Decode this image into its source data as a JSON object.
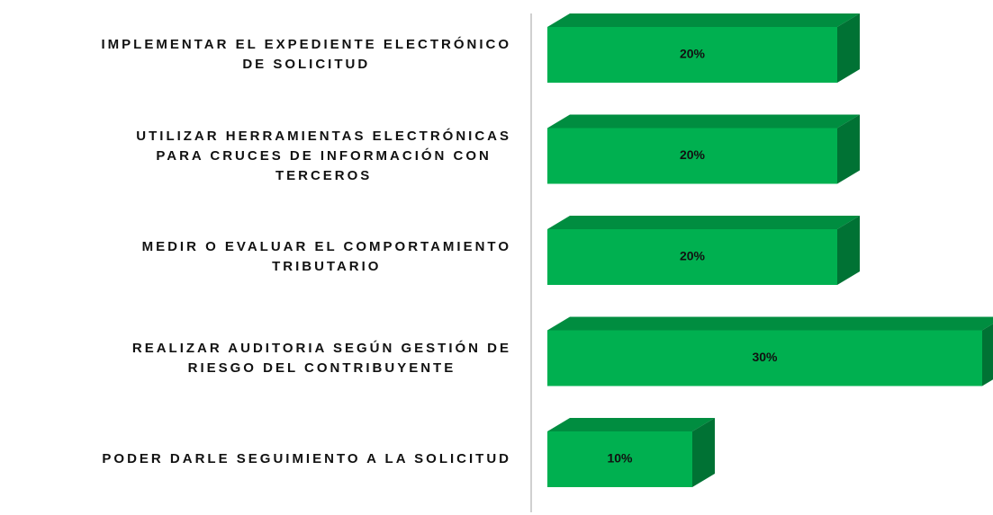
{
  "chart_data": {
    "type": "bar3d",
    "categories": [
      "IMPLEMENTAR EL EXPEDIENTE ELECTRÓNICO\nDE SOLICITUD",
      "UTILIZAR HERRAMIENTAS ELECTRÓNICAS\nPARA CRUCES DE INFORMACIÓN CON\nTERCEROS",
      "MEDIR O EVALUAR EL COMPORTAMIENTO\nTRIBUTARIO",
      "REALIZAR AUDITORIA SEGÚN GESTIÓN DE\nRIESGO DEL CONTRIBUYENTE",
      "PODER DARLE SEGUIMIENTO A LA SOLICITUD"
    ],
    "values": [
      20,
      20,
      20,
      30,
      10
    ],
    "value_labels": [
      "20%",
      "20%",
      "20%",
      "30%",
      "10%"
    ],
    "color": "#00b050"
  }
}
